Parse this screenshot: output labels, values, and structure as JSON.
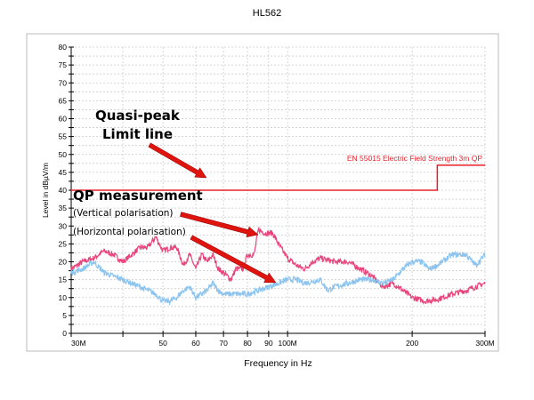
{
  "chart_data": {
    "type": "line",
    "title": "HL562",
    "xlabel": "Frequency in Hz",
    "ylabel": "Level in dBµV/m",
    "x_scale": "log",
    "xlim": [
      30,
      300
    ],
    "ylim": [
      0,
      80
    ],
    "x_unit": "MHz",
    "grid": true,
    "x_ticks": [
      {
        "value": 30,
        "label": "30M"
      },
      {
        "value": 40,
        "label": ""
      },
      {
        "value": 50,
        "label": "50"
      },
      {
        "value": 60,
        "label": "60"
      },
      {
        "value": 70,
        "label": "70"
      },
      {
        "value": 80,
        "label": "80"
      },
      {
        "value": 90,
        "label": "90"
      },
      {
        "value": 100,
        "label": "100M"
      },
      {
        "value": 200,
        "label": "200"
      },
      {
        "value": 300,
        "label": "300M"
      }
    ],
    "y_ticks": [
      0,
      5,
      10,
      15,
      20,
      25,
      30,
      35,
      40,
      45,
      50,
      55,
      60,
      65,
      70,
      75,
      80
    ],
    "limit_line": {
      "name": "EN 55015 Electric Field Strength 3m QP",
      "color": "#e8202a",
      "points": [
        [
          30,
          40
        ],
        [
          230,
          40
        ],
        [
          230,
          47
        ],
        [
          300,
          47
        ]
      ]
    },
    "series": [
      {
        "color": "#e8457a",
        "x": [
          30,
          32,
          34,
          36,
          38,
          40,
          42,
          44,
          46,
          48,
          50,
          52,
          54,
          56,
          58,
          60,
          62,
          64,
          66,
          68,
          70,
          73,
          75,
          78,
          80,
          83,
          85,
          88,
          92,
          95,
          100,
          105,
          110,
          115,
          120,
          130,
          140,
          150,
          160,
          170,
          180,
          190,
          200,
          215,
          230,
          250,
          270,
          300
        ],
        "y": [
          18,
          20,
          21,
          23,
          22,
          20,
          22,
          24,
          24,
          27,
          23,
          24,
          24,
          19,
          22,
          18,
          22,
          20,
          22,
          18,
          17,
          15,
          18,
          18,
          22,
          22,
          29,
          28,
          28,
          25,
          21,
          19,
          18,
          20,
          21,
          20,
          20,
          18,
          16,
          13,
          14,
          12,
          10,
          9,
          9.5,
          11,
          12,
          14
        ]
      },
      {
        "color": "#8cc4f0",
        "x": [
          30,
          32,
          34,
          36,
          40,
          44,
          48,
          50,
          52,
          54,
          56,
          58,
          60,
          62,
          64,
          66,
          68,
          70,
          75,
          80,
          85,
          90,
          95,
          100,
          105,
          110,
          120,
          125,
          130,
          140,
          150,
          160,
          170,
          180,
          190,
          200,
          210,
          220,
          230,
          250,
          270,
          285,
          300
        ],
        "y": [
          17,
          18,
          20,
          17,
          15,
          13,
          11,
          9,
          9,
          10,
          12,
          13,
          10,
          11,
          12,
          14,
          12,
          11,
          11,
          11,
          12,
          13,
          14,
          15,
          15,
          14,
          15,
          12,
          13,
          14,
          15,
          15,
          14,
          15,
          18,
          20,
          20,
          18,
          19,
          22,
          22,
          19,
          22
        ]
      }
    ],
    "annotations": [
      {
        "id": "quasi_peak",
        "lines": [
          "Quasi-peak",
          "Limit line"
        ]
      },
      {
        "id": "qp_measurement",
        "text": "QP measurement"
      },
      {
        "id": "vertical",
        "text": "(Vertical polarisation)"
      },
      {
        "id": "horizontal",
        "text": "(Horizontal polarisation)"
      }
    ],
    "arrow_color": "#e0140f"
  }
}
